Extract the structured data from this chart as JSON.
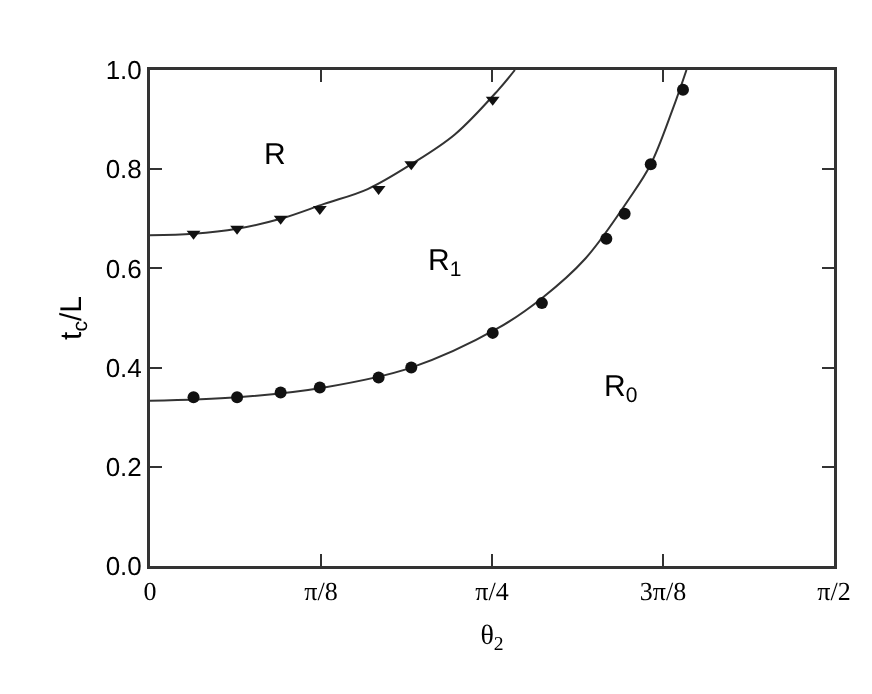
{
  "chart_data": {
    "type": "line",
    "xlabel": "θ$_{2}$",
    "ylabel": "t$_{c}$/L",
    "xlim": [
      0,
      1.5708
    ],
    "xticks": [
      0,
      {
        "value": 0.3927,
        "label": "π/8"
      },
      {
        "value": 0.7854,
        "label": "π/4"
      },
      {
        "value": 1.1781,
        "label": "3π/8"
      },
      {
        "value": 1.5708,
        "label": "π/2"
      }
    ],
    "ylim": [
      0,
      1
    ],
    "yticks": [
      {
        "value": 0,
        "label": "0.0"
      },
      0.2,
      0.4,
      0.6,
      0.8,
      {
        "value": 1,
        "label": "1.0"
      }
    ],
    "grid": false,
    "series": [
      {
        "marker": "none",
        "color": "#333333",
        "x": [
          0,
          0.1,
          0.2,
          0.3,
          0.4,
          0.5,
          0.6,
          0.7,
          0.8,
          0.838
        ],
        "values": [
          0.667,
          0.67,
          0.68,
          0.7,
          0.73,
          0.76,
          0.81,
          0.87,
          0.96,
          1.0
        ]
      },
      {
        "marker": "none",
        "color": "#333333",
        "x": [
          0,
          0.2,
          0.4,
          0.6,
          0.8,
          0.9,
          1.0,
          1.1,
          1.15,
          1.2,
          1.232
        ],
        "values": [
          0.333,
          0.34,
          0.36,
          0.4,
          0.48,
          0.54,
          0.62,
          0.74,
          0.81,
          0.92,
          1.0
        ]
      },
      {
        "type": "scatter",
        "marker": "triangle",
        "color": "#111111",
        "x": [
          0.1,
          0.2,
          0.3,
          0.39,
          0.525,
          0.6,
          0.787
        ],
        "values": [
          0.67,
          0.68,
          0.7,
          0.72,
          0.76,
          0.81,
          0.94
        ]
      },
      {
        "type": "scatter",
        "marker": "circle",
        "color": "#111111",
        "x": [
          0.1,
          0.2,
          0.3,
          0.39,
          0.525,
          0.6,
          0.787,
          0.9,
          1.048,
          1.09,
          1.15,
          1.224
        ],
        "values": [
          0.34,
          0.34,
          0.35,
          0.36,
          0.38,
          0.4,
          0.47,
          0.53,
          0.66,
          0.71,
          0.81,
          0.96
        ]
      }
    ],
    "annotations": [
      "R",
      "R$_{1}$",
      "R$_{0}$"
    ]
  }
}
